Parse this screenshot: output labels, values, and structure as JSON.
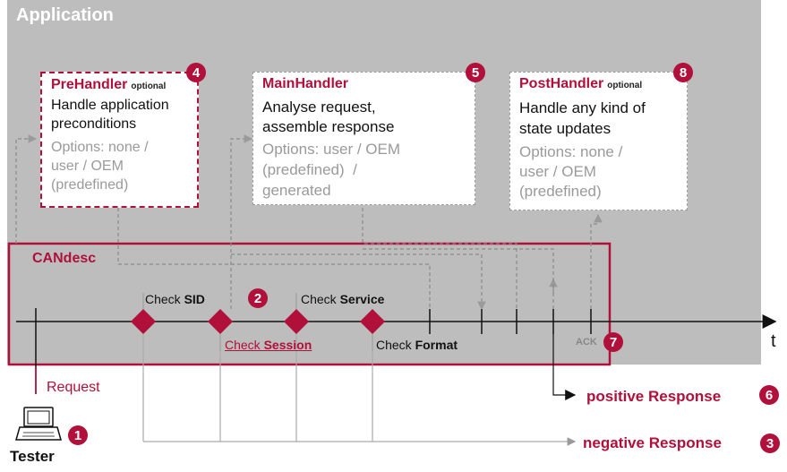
{
  "application": {
    "title": "Application"
  },
  "pre_handler": {
    "title": "PreHandler",
    "optional": "optional",
    "badge": "4",
    "desc": [
      "Handle application",
      "preconditions"
    ],
    "options": [
      "Options: none /",
      "user / OEM",
      "(predefined)"
    ]
  },
  "main_handler": {
    "title": "MainHandler",
    "badge": "5",
    "desc": [
      "Analyse request,",
      "assemble response"
    ],
    "options": [
      "Options: user / OEM",
      "(predefined)  /",
      "generated"
    ]
  },
  "post_handler": {
    "title": "PostHandler",
    "optional": "optional",
    "badge": "8",
    "desc": [
      "Handle any kind of",
      "state updates"
    ],
    "options": [
      "Options: none /",
      "user / OEM",
      "(predefined)"
    ]
  },
  "candesc": {
    "title": "CANdesc"
  },
  "checks": {
    "sid": {
      "prefix": "Check ",
      "bold": "SID"
    },
    "session": {
      "prefix": "Check ",
      "bold": "Session"
    },
    "service": {
      "prefix": "Check ",
      "bold": "Service"
    },
    "format": {
      "prefix": "Check ",
      "bold": "Format"
    },
    "badge": "2"
  },
  "ack": {
    "label": "ACK",
    "badge": "7"
  },
  "time_axis": {
    "label": "t"
  },
  "request": {
    "label": "Request"
  },
  "tester": {
    "label": "Tester",
    "badge": "1"
  },
  "positive_response": {
    "label": "positive Response",
    "badge": "6"
  },
  "negative_response": {
    "label": "negative Response",
    "badge": "3"
  },
  "colors": {
    "accent": "#b0103a",
    "app_bg": "#bdbdbd",
    "dashed_gray": "#9a9a9a"
  }
}
